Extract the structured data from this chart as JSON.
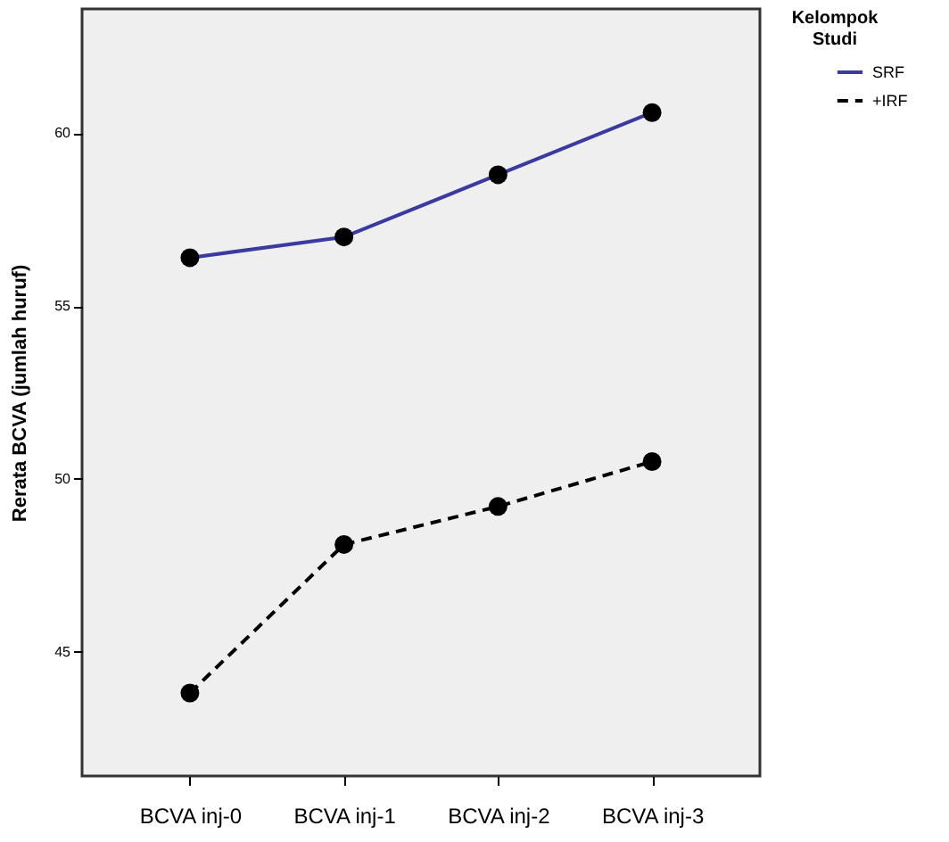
{
  "chart_data": {
    "type": "line",
    "ylabel": "Rerata BCVA (jumlah huruf)",
    "legend_title": "Kelompok Studi",
    "categories": [
      "BCVA inj-0",
      "BCVA inj-1",
      "BCVA inj-2",
      "BCVA inj-3"
    ],
    "series": [
      {
        "name": "SRF",
        "color": "#3a3aa0",
        "values": [
          56.4,
          57.0,
          58.8,
          60.6
        ],
        "line_style": "solid"
      },
      {
        "name": "+IRF",
        "color": "#000000",
        "values": [
          43.8,
          48.1,
          49.2,
          50.5
        ],
        "line_style": "dashed"
      }
    ],
    "ylim": [
      41.4,
      63.6
    ],
    "yticks": [
      45,
      50,
      55,
      60
    ],
    "grid": false,
    "legend": "top right",
    "marker": "circle"
  }
}
